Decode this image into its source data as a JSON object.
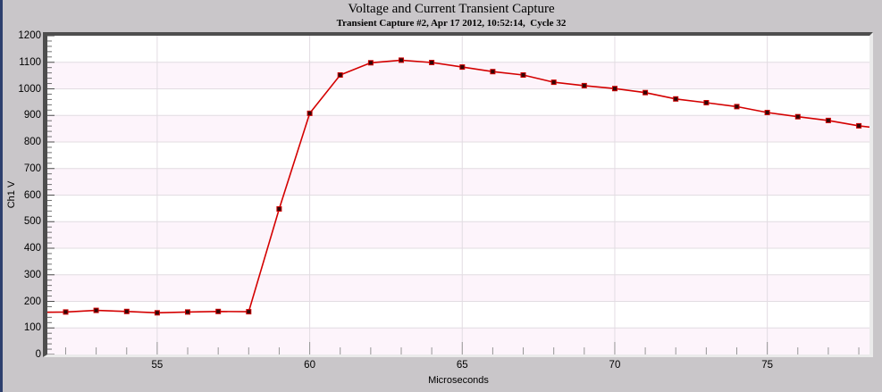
{
  "window": {
    "bg_color": "#c9c6c9",
    "left_edge_color": "#2d3f6e"
  },
  "chart_data": {
    "type": "line",
    "title": "Voltage and Current Transient Capture",
    "subtitle": "Transient Capture #2, Apr 17 2012, 10:52:14,  Cycle 32",
    "xlabel": "Microseconds",
    "ylabel": "Ch1 V",
    "xlim": [
      51.4,
      78.35
    ],
    "ylim": [
      0,
      1200
    ],
    "x_major_ticks": [
      55,
      60,
      65,
      70,
      75
    ],
    "x_minor_tick_step": 1,
    "y_major_tick_step": 100,
    "y_minor_tick_step": 20,
    "grid": true,
    "legend_position": "none",
    "series": [
      {
        "name": "Ch1 V",
        "x": [
          52,
          53,
          54,
          55,
          56,
          57,
          58,
          59,
          60,
          61,
          62,
          63,
          64,
          65,
          66,
          67,
          68,
          69,
          70,
          71,
          72,
          73,
          74,
          75,
          76,
          77,
          78
        ],
        "y": [
          160,
          166,
          162,
          157,
          160,
          162,
          161,
          548,
          908,
          1052,
          1098,
          1108,
          1099,
          1082,
          1065,
          1052,
          1025,
          1012,
          1001,
          986,
          962,
          948,
          933,
          911,
          895,
          881,
          861
        ]
      }
    ],
    "edge_extension": {
      "left": {
        "x": 51.4,
        "y": 159
      },
      "right": {
        "x": 78.35,
        "y": 856
      }
    },
    "palette": {
      "line_color": "#d40000",
      "marker_color": "#330606",
      "marker_edge_color": "#cc0000",
      "band_pink": "#fdf4fb",
      "band_white": "#ffffff",
      "grid_color": "#e2dce2",
      "axis_frame_dark": "#4e4e4e",
      "axis_frame_light": "#ebebeb",
      "y_tick_color": "#6e6e6e",
      "x_tick_color": "#969696"
    }
  }
}
